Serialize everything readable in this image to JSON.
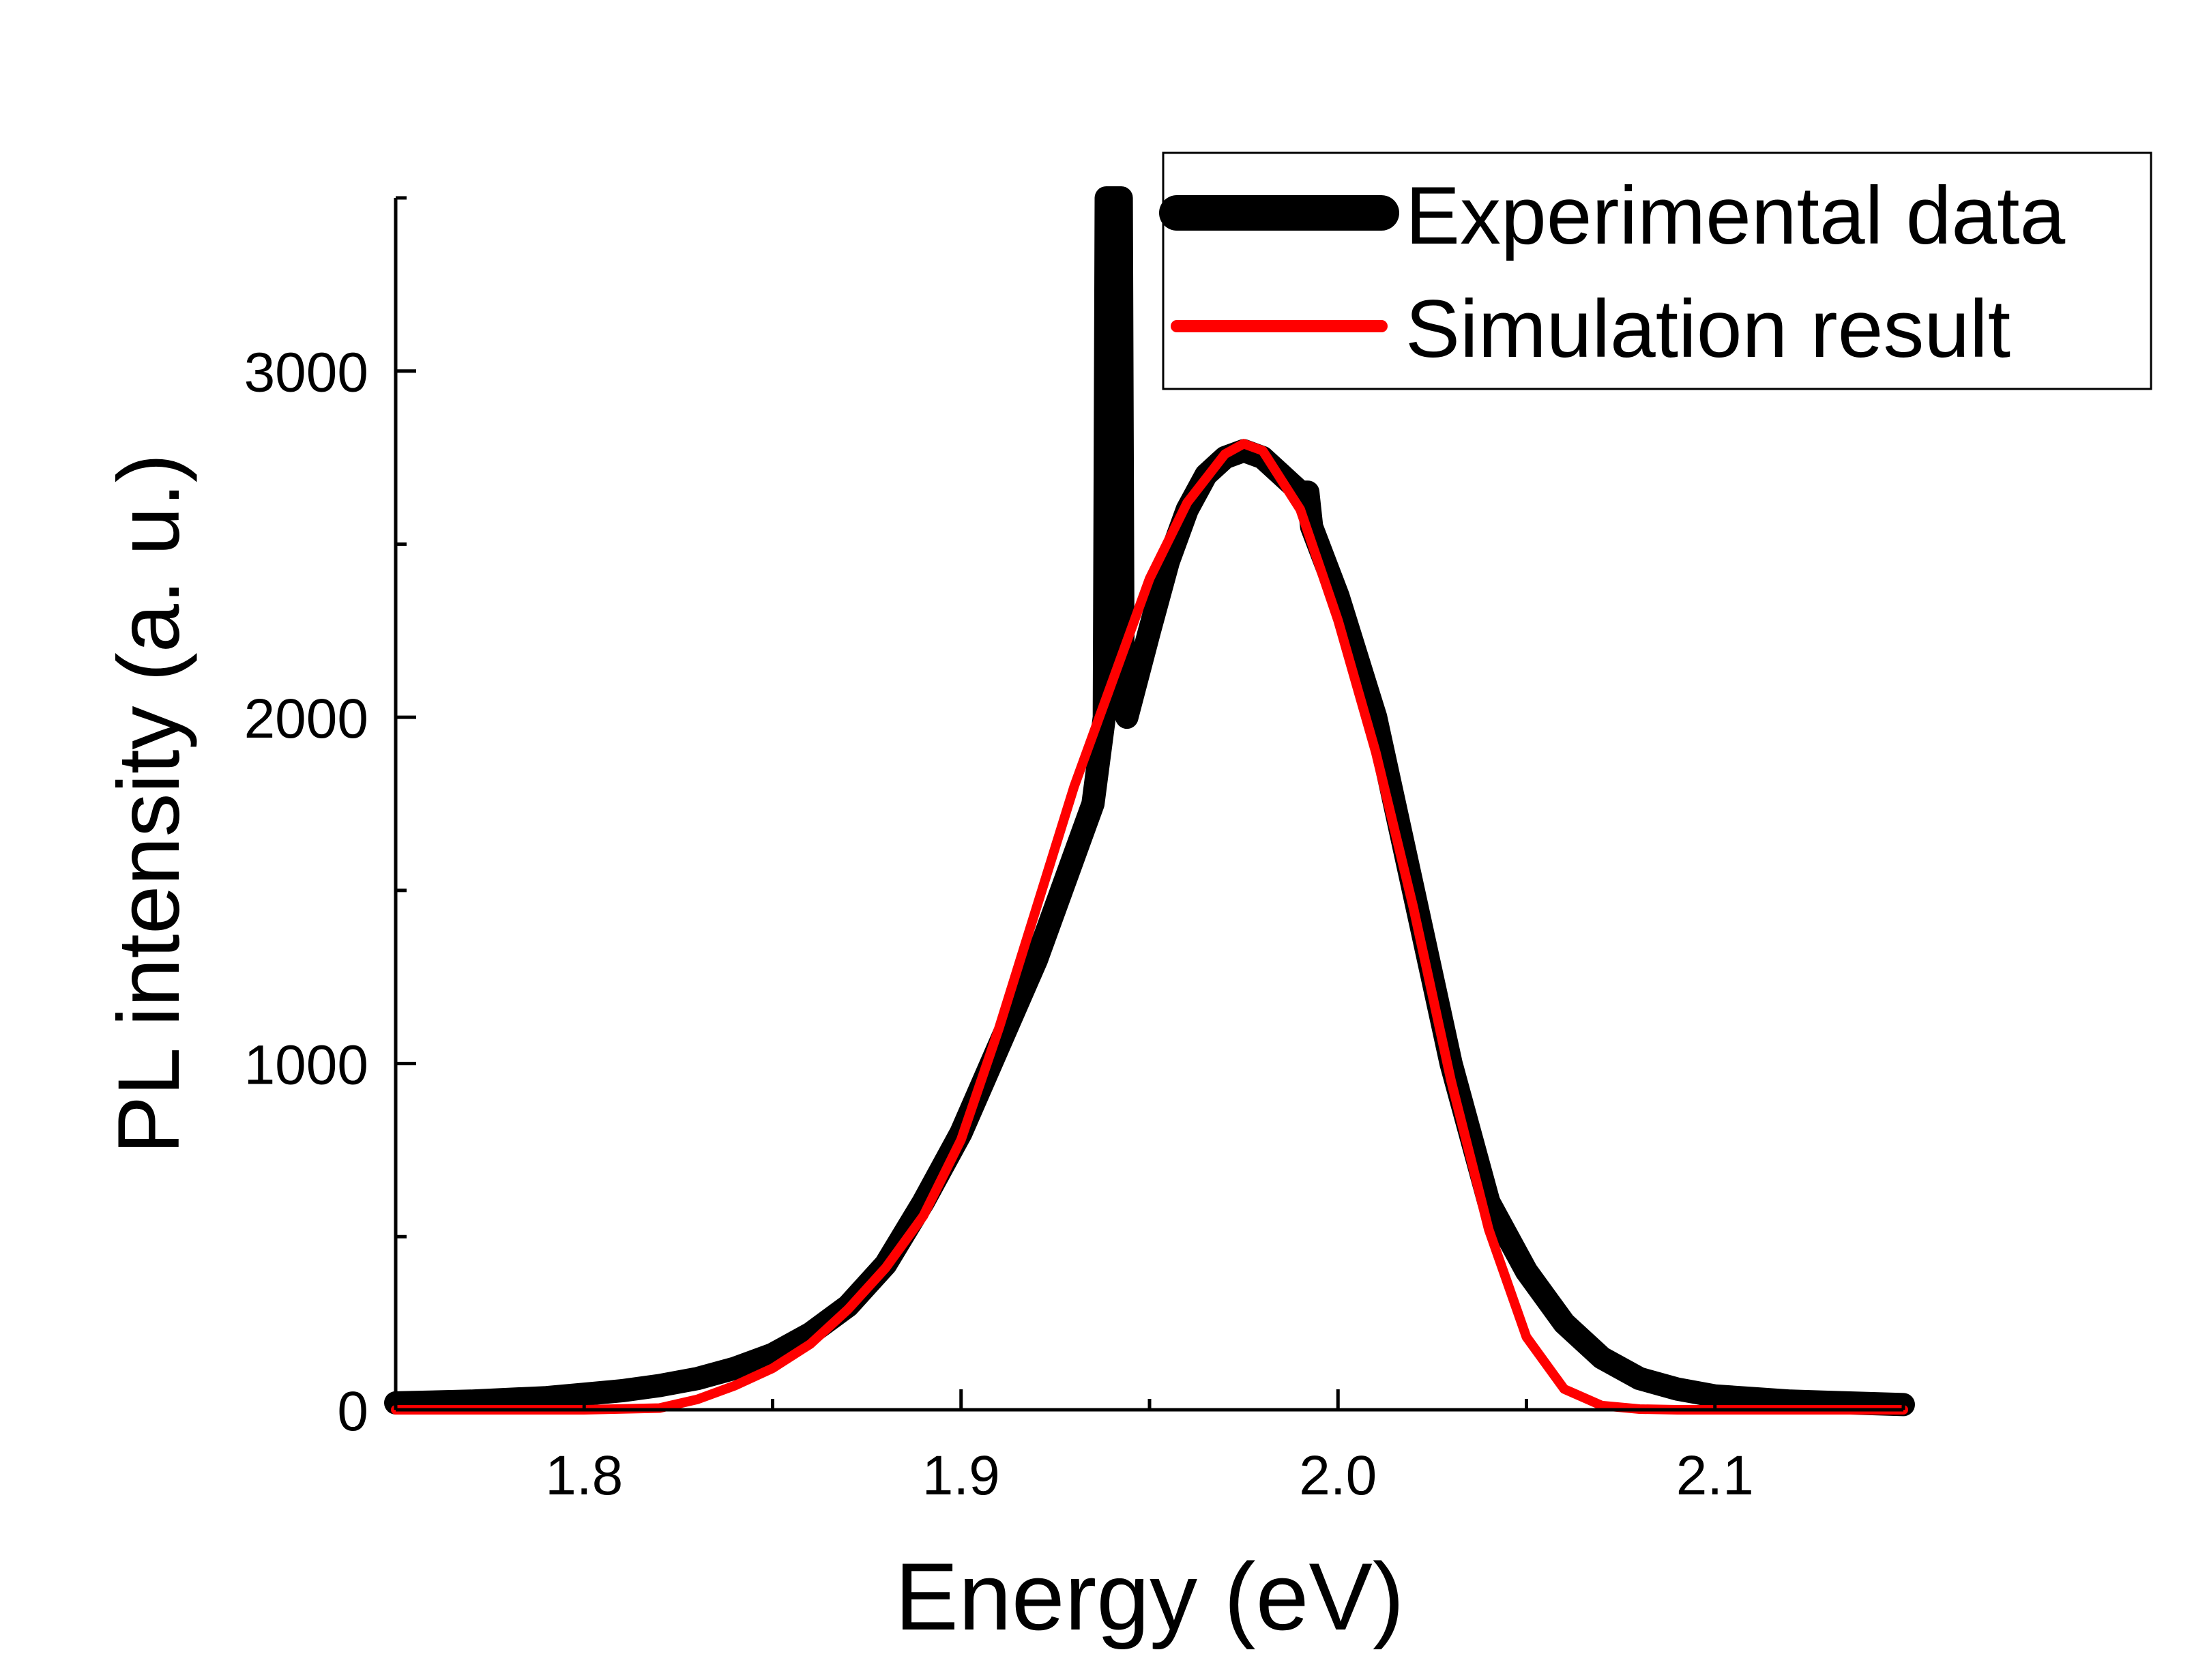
{
  "chart_data": {
    "type": "line",
    "title": "",
    "xlabel": "Energy (eV)",
    "ylabel": "PL intensity (a. u.)",
    "xlim": [
      1.75,
      2.15
    ],
    "ylim": [
      0,
      3500
    ],
    "x_ticks": [
      1.8,
      1.9,
      2.0,
      2.1
    ],
    "x_tick_labels": [
      "1.8",
      "1.9",
      "2.0",
      "2.1"
    ],
    "y_ticks": [
      0,
      1000,
      2000,
      3000
    ],
    "y_tick_labels": [
      "0",
      "1000",
      "2000",
      "3000"
    ],
    "x_minor_ticks": [
      1.75,
      1.85,
      1.95,
      2.05,
      2.15
    ],
    "y_minor_ticks": [
      500,
      1500,
      2500,
      3500
    ],
    "legend_position": "top-right",
    "series": [
      {
        "name": "Experimental data",
        "color": "#000000",
        "x": [
          1.75,
          1.77,
          1.79,
          1.8,
          1.81,
          1.82,
          1.83,
          1.84,
          1.85,
          1.86,
          1.87,
          1.88,
          1.89,
          1.9,
          1.91,
          1.92,
          1.93,
          1.935,
          1.938,
          1.9385,
          1.9395,
          1.9405,
          1.9425,
          1.943,
          1.944,
          1.95,
          1.955,
          1.96,
          1.965,
          1.97,
          1.975,
          1.98,
          1.985,
          1.99,
          1.992,
          1.993,
          2.0,
          2.01,
          2.02,
          2.03,
          2.04,
          2.05,
          2.06,
          2.07,
          2.08,
          2.09,
          2.1,
          2.12,
          2.15
        ],
        "y": [
          20,
          25,
          35,
          45,
          55,
          70,
          90,
          120,
          160,
          220,
          300,
          420,
          600,
          800,
          1050,
          1300,
          1600,
          1750,
          2000,
          3500,
          3500,
          3500,
          3500,
          2050,
          2000,
          2250,
          2450,
          2600,
          2700,
          2750,
          2770,
          2750,
          2700,
          2650,
          2650,
          2550,
          2350,
          2000,
          1500,
          1000,
          600,
          400,
          250,
          150,
          90,
          60,
          40,
          25,
          15
        ]
      },
      {
        "name": "Simulation result",
        "color": "#ff0000",
        "x": [
          1.75,
          1.8,
          1.82,
          1.83,
          1.84,
          1.85,
          1.86,
          1.87,
          1.88,
          1.89,
          1.9,
          1.91,
          1.92,
          1.93,
          1.94,
          1.95,
          1.96,
          1.97,
          1.975,
          1.98,
          1.99,
          2.0,
          2.01,
          2.02,
          2.03,
          2.04,
          2.05,
          2.06,
          2.07,
          2.08,
          2.09,
          2.1,
          2.15
        ],
        "y": [
          0,
          0,
          5,
          30,
          70,
          120,
          190,
          290,
          410,
          560,
          780,
          1100,
          1450,
          1800,
          2100,
          2400,
          2620,
          2760,
          2790,
          2770,
          2600,
          2280,
          1900,
          1450,
          950,
          520,
          210,
          60,
          12,
          2,
          0,
          0,
          0
        ]
      }
    ]
  }
}
